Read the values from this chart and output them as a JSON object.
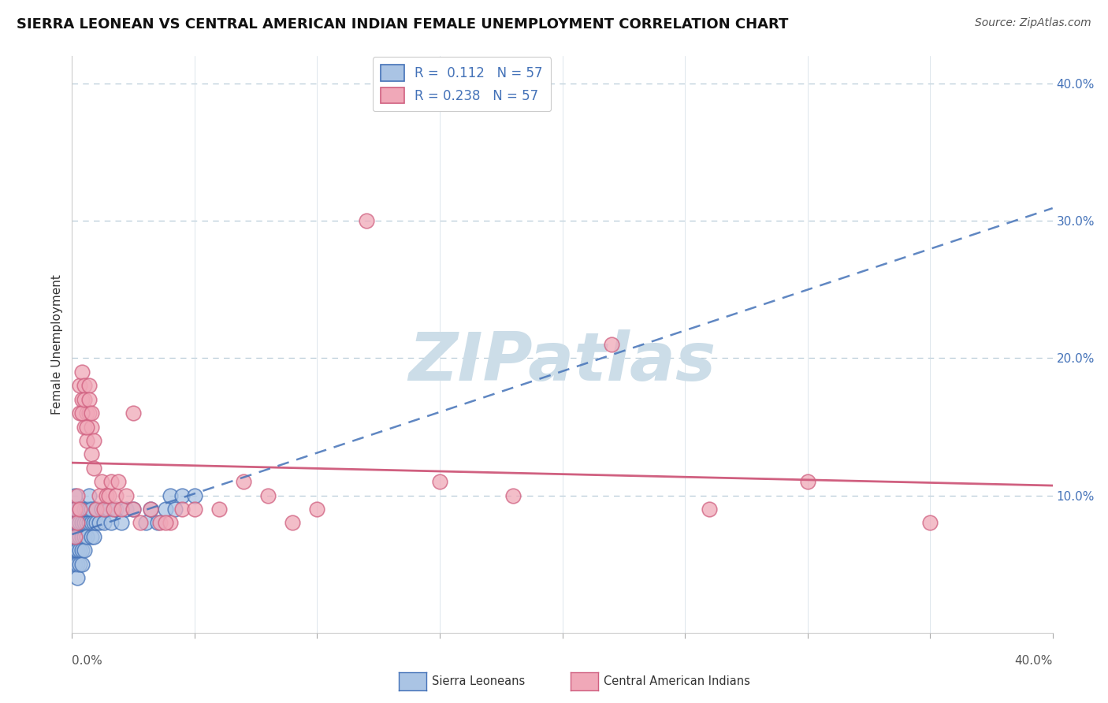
{
  "title": "SIERRA LEONEAN VS CENTRAL AMERICAN INDIAN FEMALE UNEMPLOYMENT CORRELATION CHART",
  "source": "Source: ZipAtlas.com",
  "ylabel": "Female Unemployment",
  "xlim": [
    0.0,
    0.4
  ],
  "ylim": [
    0.0,
    0.42
  ],
  "yticks": [
    0.0,
    0.1,
    0.2,
    0.3,
    0.4
  ],
  "ytick_labels": [
    "",
    "10.0%",
    "20.0%",
    "30.0%",
    "40.0%"
  ],
  "legend_r1": "R =  0.112",
  "legend_n1": "N = 57",
  "legend_r2": "R = 0.238",
  "legend_n2": "N = 57",
  "legend_label1": "Sierra Leoneans",
  "legend_label2": "Central American Indians",
  "blue_face": "#aac4e4",
  "blue_edge": "#4472b8",
  "pink_face": "#f0a8b8",
  "pink_edge": "#d06080",
  "blue_line_color": "#4472b8",
  "pink_line_color": "#d06080",
  "watermark": "ZIPatlas",
  "watermark_color": "#ccdde8",
  "blue_x": [
    0.001,
    0.001,
    0.001,
    0.001,
    0.001,
    0.001,
    0.002,
    0.002,
    0.002,
    0.002,
    0.002,
    0.002,
    0.002,
    0.003,
    0.003,
    0.003,
    0.003,
    0.003,
    0.004,
    0.004,
    0.004,
    0.004,
    0.005,
    0.005,
    0.005,
    0.005,
    0.006,
    0.006,
    0.006,
    0.007,
    0.007,
    0.007,
    0.008,
    0.008,
    0.008,
    0.009,
    0.009,
    0.01,
    0.01,
    0.011,
    0.012,
    0.013,
    0.014,
    0.015,
    0.016,
    0.018,
    0.02,
    0.022,
    0.025,
    0.03,
    0.032,
    0.035,
    0.038,
    0.04,
    0.042,
    0.045,
    0.05
  ],
  "blue_y": [
    0.07,
    0.08,
    0.09,
    0.1,
    0.06,
    0.05,
    0.06,
    0.07,
    0.08,
    0.09,
    0.06,
    0.05,
    0.04,
    0.07,
    0.08,
    0.09,
    0.06,
    0.05,
    0.07,
    0.08,
    0.06,
    0.05,
    0.07,
    0.08,
    0.09,
    0.06,
    0.08,
    0.09,
    0.07,
    0.08,
    0.09,
    0.1,
    0.07,
    0.08,
    0.09,
    0.07,
    0.08,
    0.08,
    0.09,
    0.08,
    0.09,
    0.08,
    0.09,
    0.09,
    0.08,
    0.09,
    0.08,
    0.09,
    0.09,
    0.08,
    0.09,
    0.08,
    0.09,
    0.1,
    0.09,
    0.1,
    0.1
  ],
  "pink_x": [
    0.001,
    0.001,
    0.002,
    0.002,
    0.003,
    0.003,
    0.003,
    0.004,
    0.004,
    0.005,
    0.005,
    0.006,
    0.006,
    0.007,
    0.007,
    0.008,
    0.008,
    0.009,
    0.009,
    0.01,
    0.011,
    0.012,
    0.013,
    0.014,
    0.015,
    0.016,
    0.017,
    0.018,
    0.019,
    0.02,
    0.022,
    0.025,
    0.028,
    0.032,
    0.036,
    0.04,
    0.045,
    0.05,
    0.06,
    0.07,
    0.08,
    0.09,
    0.1,
    0.12,
    0.15,
    0.18,
    0.22,
    0.26,
    0.3,
    0.35,
    0.004,
    0.005,
    0.006,
    0.007,
    0.008,
    0.025,
    0.038
  ],
  "pink_y": [
    0.07,
    0.09,
    0.08,
    0.1,
    0.09,
    0.16,
    0.18,
    0.17,
    0.19,
    0.15,
    0.18,
    0.14,
    0.16,
    0.16,
    0.18,
    0.13,
    0.15,
    0.12,
    0.14,
    0.09,
    0.1,
    0.11,
    0.09,
    0.1,
    0.1,
    0.11,
    0.09,
    0.1,
    0.11,
    0.09,
    0.1,
    0.09,
    0.08,
    0.09,
    0.08,
    0.08,
    0.09,
    0.09,
    0.09,
    0.11,
    0.1,
    0.08,
    0.09,
    0.3,
    0.11,
    0.1,
    0.21,
    0.09,
    0.11,
    0.08,
    0.16,
    0.17,
    0.15,
    0.17,
    0.16,
    0.16,
    0.08
  ],
  "title_fontsize": 13,
  "source_fontsize": 10,
  "tick_fontsize": 11
}
